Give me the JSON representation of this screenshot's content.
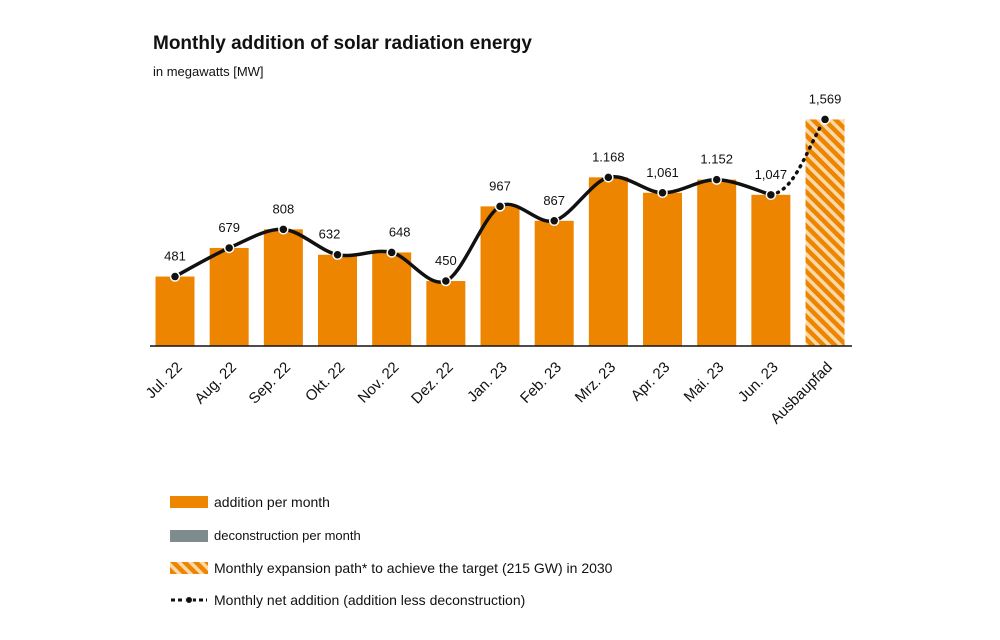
{
  "chart_data": {
    "type": "bar",
    "title": "Monthly addition of solar radiation energy",
    "subtitle": "in megawatts [MW]",
    "categories": [
      "Jul. 22",
      "Aug. 22",
      "Sep. 22",
      "Okt. 22",
      "Nov. 22",
      "Dez. 22",
      "Jan. 23",
      "Feb. 23",
      "Mrz. 23",
      "Apr. 23",
      "Mai. 23",
      "Jun. 23",
      "Ausbaupfad"
    ],
    "series": [
      {
        "name": "addition per month",
        "values": [
          481,
          679,
          808,
          632,
          648,
          450,
          967,
          867,
          1168,
          1061,
          1152,
          1047,
          null
        ]
      },
      {
        "name": "Monthly expansion path* to achieve the target (215 GW) in 2030",
        "values": [
          null,
          null,
          null,
          null,
          null,
          null,
          null,
          null,
          null,
          null,
          null,
          null,
          1569
        ]
      },
      {
        "name": "Monthly net addition (addition less deconstruction)",
        "values": [
          481,
          679,
          808,
          632,
          648,
          450,
          967,
          867,
          1168,
          1061,
          1152,
          1047,
          1569
        ]
      }
    ],
    "data_labels": [
      "481",
      "679",
      "808",
      "632",
      "648",
      "450",
      "967",
      "867",
      "1.168",
      "1,061",
      "1.152",
      "1,047",
      "1,569"
    ],
    "ylim": [
      0,
      1600
    ],
    "legend": [
      {
        "label": "addition per month",
        "swatch": "solid",
        "color": "#ee8500"
      },
      {
        "label": "deconstruction per month",
        "swatch": "solid",
        "color": "#7f8c8d"
      },
      {
        "label": "Monthly expansion path* to achieve the target (215 GW) in 2030",
        "swatch": "hatched",
        "color": "#ee8500"
      },
      {
        "label": "Monthly net addition (addition less deconstruction)",
        "swatch": "line-dots",
        "color": "#111111"
      }
    ],
    "legend_position": "bottom-left",
    "colors": {
      "bar": "#ee8500",
      "deconstruction": "#7f8c8d",
      "line": "#111111"
    }
  }
}
